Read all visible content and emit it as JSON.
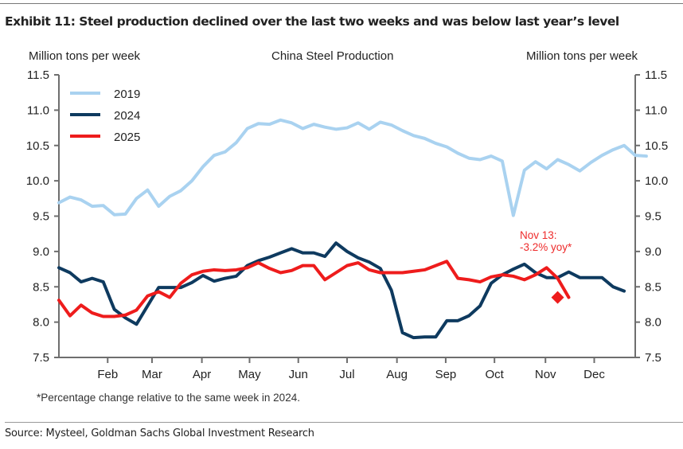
{
  "header": {
    "title": "Exhibit 11: Steel production declined over the last two weeks and was below last year’s level"
  },
  "footnote": "*Percentage change relative to the same week in 2024.",
  "source": "Source: Mysteel, Goldman Sachs Global Investment Research",
  "chart_data": {
    "type": "line",
    "title": "China Steel Production",
    "ylabel": "Million tons per week",
    "ylabel_right": "Million tons per week",
    "xlabel": "",
    "ylim": [
      7.5,
      11.5
    ],
    "yticks": [
      "11.5",
      "11.0",
      "10.5",
      "10.0",
      "9.5",
      "9.0",
      "8.5",
      "8.0",
      "7.5"
    ],
    "ytick_values": [
      11.5,
      11.0,
      10.5,
      10.0,
      9.5,
      9.0,
      8.5,
      8.0,
      7.5
    ],
    "x_unit": "week of year",
    "xlim": [
      1,
      53
    ],
    "xticks": [
      {
        "label": "Feb",
        "week": 5.4
      },
      {
        "label": "Mar",
        "week": 9.4
      },
      {
        "label": "Apr",
        "week": 13.9
      },
      {
        "label": "May",
        "week": 18.2
      },
      {
        "label": "Jun",
        "week": 22.6
      },
      {
        "label": "Jul",
        "week": 27.0
      },
      {
        "label": "Aug",
        "week": 31.5
      },
      {
        "label": "Sep",
        "week": 35.9
      },
      {
        "label": "Oct",
        "week": 40.3
      },
      {
        "label": "Nov",
        "week": 44.9
      },
      {
        "label": "Dec",
        "week": 49.3
      }
    ],
    "grid": false,
    "legend": {
      "position": "top-left",
      "entries": [
        "2019",
        "2024",
        "2025"
      ]
    },
    "colors": {
      "2019": "#a9d2f0",
      "2024": "#0e3a5f",
      "2025": "#ee1c1c"
    },
    "series": [
      {
        "name": "2019",
        "start_week": 1,
        "values": [
          9.69,
          9.77,
          9.73,
          9.64,
          9.65,
          9.52,
          9.53,
          9.75,
          9.87,
          9.64,
          9.78,
          9.86,
          10.0,
          10.2,
          10.36,
          10.41,
          10.54,
          10.74,
          10.81,
          10.8,
          10.86,
          10.82,
          10.74,
          10.8,
          10.76,
          10.73,
          10.75,
          10.82,
          10.73,
          10.83,
          10.79,
          10.71,
          10.64,
          10.6,
          10.53,
          10.48,
          10.39,
          10.32,
          10.3,
          10.35,
          10.28,
          9.51,
          10.15,
          10.27,
          10.17,
          10.3,
          10.23,
          10.14,
          10.26,
          10.36,
          10.44,
          10.5,
          10.36,
          10.35
        ]
      },
      {
        "name": "2024",
        "start_week": 1,
        "values": [
          8.77,
          8.7,
          8.57,
          8.62,
          8.57,
          8.18,
          8.06,
          7.97,
          8.23,
          8.49,
          8.49,
          8.49,
          8.56,
          8.66,
          8.58,
          8.62,
          8.65,
          8.8,
          8.87,
          8.92,
          8.98,
          9.04,
          8.98,
          8.98,
          8.93,
          9.12,
          9.0,
          8.91,
          8.85,
          8.76,
          8.45,
          7.85,
          7.78,
          7.79,
          7.79,
          8.02,
          8.02,
          8.09,
          8.23,
          8.55,
          8.67,
          8.75,
          8.82,
          8.7,
          8.63,
          8.63,
          8.71,
          8.63,
          8.63,
          8.63,
          8.5,
          8.44
        ]
      },
      {
        "name": "2025",
        "start_week": 1,
        "values": [
          8.31,
          8.09,
          8.24,
          8.13,
          8.08,
          8.08,
          8.1,
          8.17,
          8.37,
          8.43,
          8.35,
          8.55,
          8.67,
          8.72,
          8.74,
          8.73,
          8.74,
          8.77,
          8.84,
          8.76,
          8.7,
          8.73,
          8.8,
          8.8,
          8.6,
          8.7,
          8.8,
          8.84,
          8.74,
          8.7,
          8.7,
          8.7,
          8.72,
          8.74,
          8.8,
          8.86,
          8.62,
          8.6,
          8.57,
          8.64,
          8.67,
          8.65,
          8.6,
          8.67,
          8.77,
          8.62,
          8.35
        ]
      }
    ],
    "annotation": {
      "lines": [
        "Nov 13:",
        "-3.2% yoy*"
      ],
      "week": 46,
      "value": 8.35,
      "marker": "diamond"
    }
  }
}
